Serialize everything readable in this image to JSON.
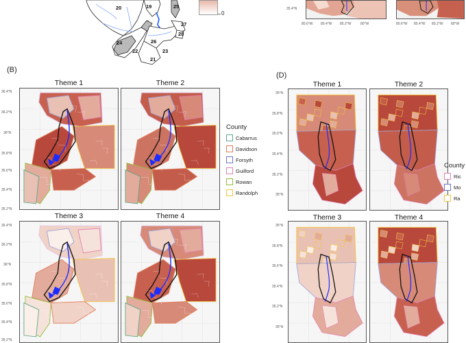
{
  "panels": {
    "A": {
      "subbasin_numbers": [
        "20",
        "19",
        "25",
        "27",
        "28",
        "24",
        "22",
        "26",
        "23",
        "21"
      ],
      "colorbar_min": "0"
    },
    "B": {
      "letter": "(B)",
      "themes": [
        "Theme 1",
        "Theme 2",
        "Theme 3",
        "Theme 4"
      ],
      "lat_ticks": [
        "36.4°N",
        "36.2°N",
        "36°N",
        "35.8°N",
        "35.6°N",
        "35.4°N",
        "35.2°N"
      ],
      "legend_title": "County",
      "legend": [
        {
          "label": "Cabarrus",
          "color": "#5aa88a"
        },
        {
          "label": "Davidson",
          "color": "#e07b58"
        },
        {
          "label": "Forsyth",
          "color": "#6a73c9"
        },
        {
          "label": "Guilford",
          "color": "#e57fb3"
        },
        {
          "label": "Rowan",
          "color": "#8fbf3a"
        },
        {
          "label": "Randolph",
          "color": "#f2c53d"
        }
      ]
    },
    "C": {
      "lon_ticks": [
        "80.6°W",
        "80.4°W",
        "80.2°W",
        "80°W",
        "80.6°W",
        "80.4°W",
        "80.2°W",
        "80°W"
      ],
      "lat_tick": "35.4°N"
    },
    "D": {
      "letter": "(D)",
      "themes": [
        "Theme 1",
        "Theme 2",
        "Theme 3",
        "Theme 4"
      ],
      "lat_ticks": [
        "35°N",
        "35.8°N",
        "35.6°N",
        "35.4°N",
        "35.2°N",
        "35°N"
      ],
      "legend_title": "County",
      "legend": [
        {
          "label": "Ric",
          "color": "#e57fb3"
        },
        {
          "label": "Mo",
          "color": "#6a73c9"
        },
        {
          "label": "Ra",
          "color": "#f2c53d"
        }
      ]
    }
  },
  "colors": {
    "fill_dark": "#b8473c",
    "fill_mid": "#d68a77",
    "fill_light": "#f0d2c6",
    "river": "#1a2cff",
    "basin_outline": "#111111"
  }
}
